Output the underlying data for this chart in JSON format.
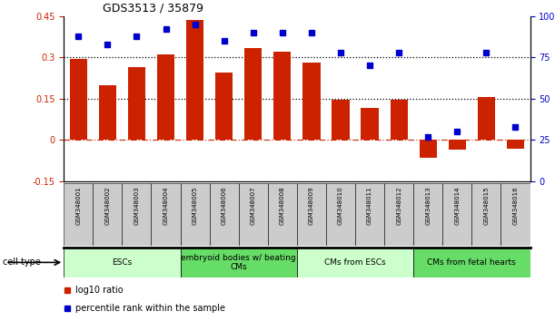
{
  "title": "GDS3513 / 35879",
  "samples": [
    "GSM348001",
    "GSM348002",
    "GSM348003",
    "GSM348004",
    "GSM348005",
    "GSM348006",
    "GSM348007",
    "GSM348008",
    "GSM348009",
    "GSM348010",
    "GSM348011",
    "GSM348012",
    "GSM348013",
    "GSM348014",
    "GSM348015",
    "GSM348016"
  ],
  "log10_ratio": [
    0.295,
    0.2,
    0.265,
    0.31,
    0.435,
    0.245,
    0.335,
    0.32,
    0.28,
    0.145,
    0.115,
    0.145,
    -0.065,
    -0.035,
    0.155,
    -0.03
  ],
  "percentile_rank": [
    88,
    83,
    88,
    92,
    95,
    85,
    90,
    90,
    90,
    78,
    70,
    78,
    27,
    30,
    78,
    33
  ],
  "ylim_left": [
    -0.15,
    0.45
  ],
  "ylim_right": [
    0,
    100
  ],
  "yticks_left": [
    -0.15,
    0,
    0.15,
    0.3,
    0.45
  ],
  "yticks_right": [
    0,
    25,
    50,
    75,
    100
  ],
  "hlines": [
    0.15,
    0.3
  ],
  "cell_type_groups": [
    {
      "label": "ESCs",
      "start": 0,
      "end": 4,
      "color": "#ccffcc"
    },
    {
      "label": "embryoid bodies w/ beating\nCMs",
      "start": 4,
      "end": 8,
      "color": "#66dd66"
    },
    {
      "label": "CMs from ESCs",
      "start": 8,
      "end": 12,
      "color": "#ccffcc"
    },
    {
      "label": "CMs from fetal hearts",
      "start": 12,
      "end": 16,
      "color": "#66dd66"
    }
  ],
  "bar_color": "#cc2200",
  "dot_color": "#0000cc",
  "zero_line_color": "#cc2200",
  "hline_color": "#000000",
  "sample_box_color": "#cccccc",
  "cell_type_label": "cell type",
  "legend_bar_label": "log10 ratio",
  "legend_dot_label": "percentile rank within the sample",
  "title_fontsize": 9,
  "tick_fontsize": 7,
  "sample_fontsize": 5,
  "group_fontsize": 6.5,
  "legend_fontsize": 7
}
